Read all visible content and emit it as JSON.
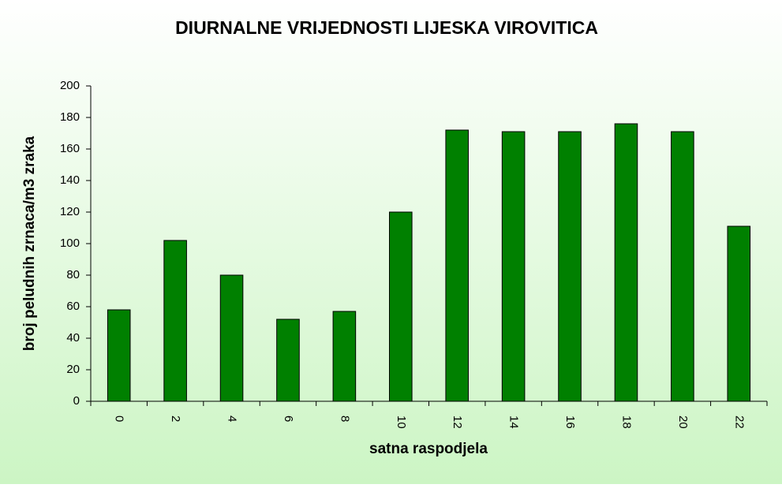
{
  "chart_data": {
    "type": "bar",
    "title": "DIURNALNE VRIJEDNOSTI LIJESKA VIROVITICA",
    "x_label": "satna raspodjela",
    "y_label": "broj peludnih  zrnaca/m3 zraka",
    "categories": [
      "0",
      "2",
      "4",
      "6",
      "8",
      "10",
      "12",
      "14",
      "16",
      "18",
      "20",
      "22"
    ],
    "values": [
      58,
      102,
      80,
      52,
      57,
      120,
      172,
      171,
      171,
      176,
      171,
      111
    ],
    "color": "#008000",
    "ylim": [
      0,
      200
    ],
    "yticks": [
      0,
      20,
      40,
      60,
      80,
      100,
      120,
      140,
      160,
      180,
      200
    ],
    "grid": false
  }
}
